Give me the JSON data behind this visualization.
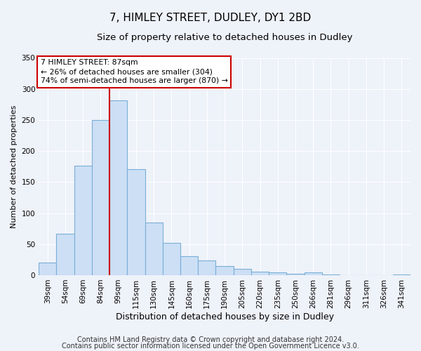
{
  "title": "7, HIMLEY STREET, DUDLEY, DY1 2BD",
  "subtitle": "Size of property relative to detached houses in Dudley",
  "xlabel": "Distribution of detached houses by size in Dudley",
  "ylabel": "Number of detached properties",
  "categories": [
    "39sqm",
    "54sqm",
    "69sqm",
    "84sqm",
    "99sqm",
    "115sqm",
    "130sqm",
    "145sqm",
    "160sqm",
    "175sqm",
    "190sqm",
    "205sqm",
    "220sqm",
    "235sqm",
    "250sqm",
    "266sqm",
    "281sqm",
    "296sqm",
    "311sqm",
    "326sqm",
    "341sqm"
  ],
  "values": [
    20,
    67,
    176,
    250,
    282,
    171,
    85,
    52,
    30,
    24,
    15,
    10,
    6,
    4,
    2,
    5,
    1,
    0,
    0,
    0,
    1
  ],
  "bar_color": "#ccdff5",
  "bar_edge_color": "#7aaed6",
  "vline_x_index": 3,
  "vline_color": "#cc0000",
  "ylim": [
    0,
    350
  ],
  "yticks": [
    0,
    50,
    100,
    150,
    200,
    250,
    300,
    350
  ],
  "annotation_title": "7 HIMLEY STREET: 87sqm",
  "annotation_line1": "← 26% of detached houses are smaller (304)",
  "annotation_line2": "74% of semi-detached houses are larger (870) →",
  "annotation_box_color": "#ffffff",
  "annotation_box_edge_color": "#cc0000",
  "footer1": "Contains HM Land Registry data © Crown copyright and database right 2024.",
  "footer2": "Contains public sector information licensed under the Open Government Licence v3.0.",
  "background_color": "#eef2f9",
  "grid_color": "#ffffff",
  "title_fontsize": 11,
  "subtitle_fontsize": 9.5,
  "xlabel_fontsize": 9,
  "ylabel_fontsize": 8,
  "tick_fontsize": 7.5,
  "footer_fontsize": 7
}
